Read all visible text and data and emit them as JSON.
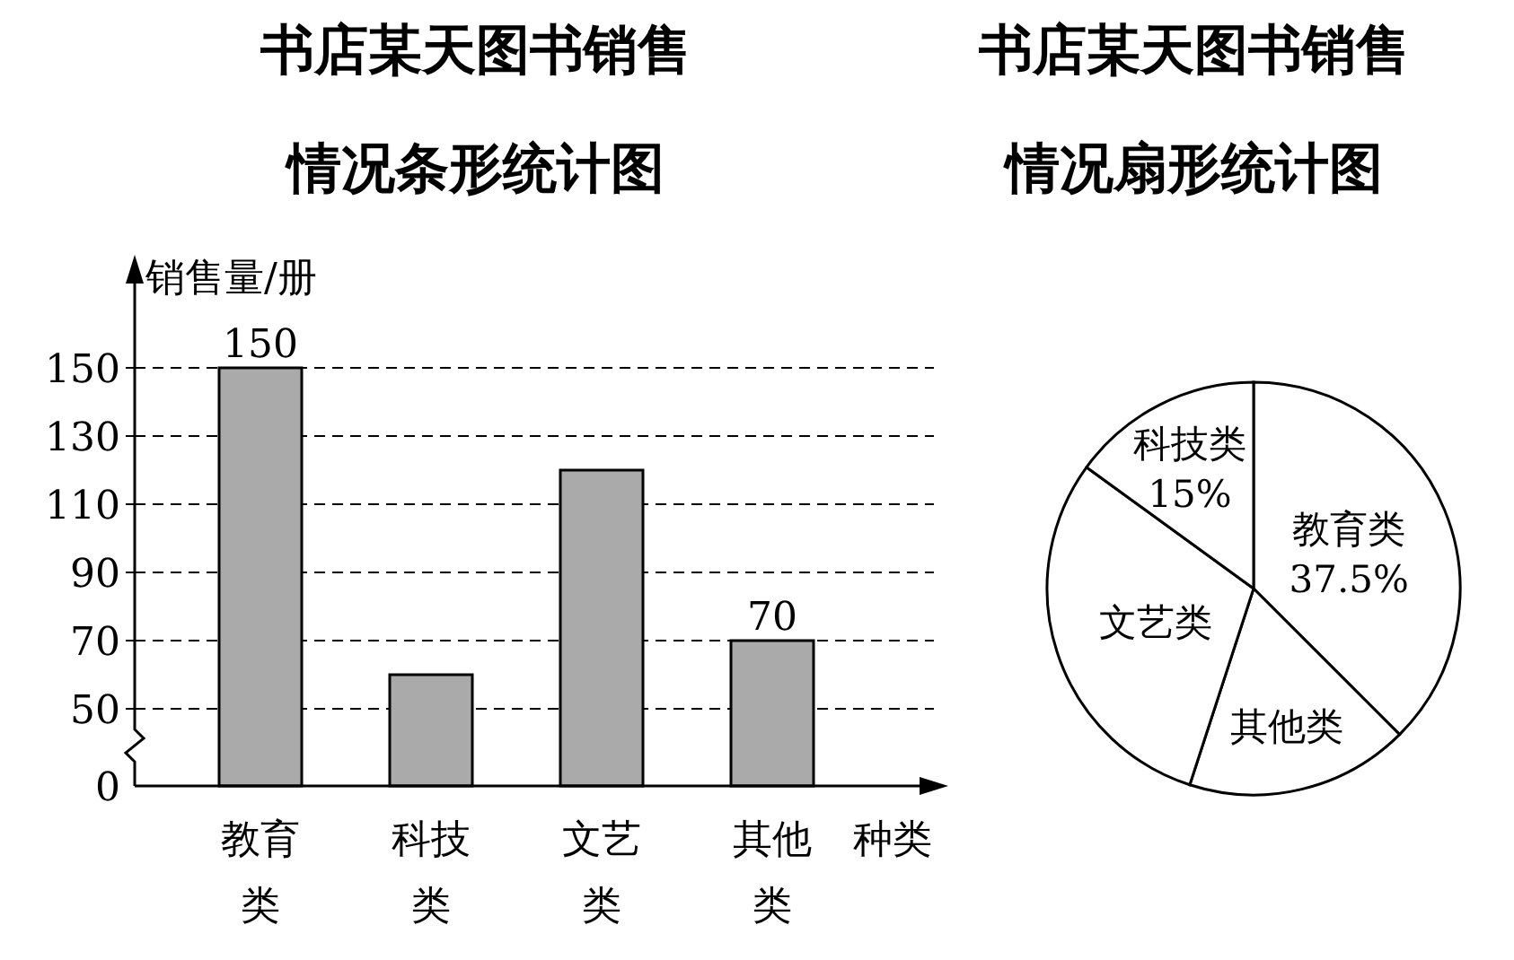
{
  "chart_data": [
    {
      "type": "bar",
      "title": "书店某天图书销售情况条形统计图",
      "xlabel": "种类",
      "ylabel": "销售量/册",
      "categories": [
        "教育类",
        "科技类",
        "文艺类",
        "其他类"
      ],
      "values": [
        150,
        60,
        120,
        70
      ],
      "color": "#aaaaaa",
      "value_labels": [
        "150",
        null,
        null,
        "70"
      ],
      "ylim": [
        50,
        150
      ],
      "yticks": [
        50,
        70,
        90,
        110,
        130,
        150
      ],
      "grid": "y",
      "annotations": [
        "0"
      ]
    },
    {
      "type": "pie",
      "title": "书店某天图书销售情况扇形统计图",
      "categories": [
        "教育类",
        "其他类",
        "文艺类",
        "科技类"
      ],
      "values": [
        37.5,
        17.5,
        30,
        15
      ],
      "colors": [
        "#ffffff",
        "#ffffff",
        "#ffffff",
        "#ffffff"
      ],
      "value_labels": [
        "37.5%",
        null,
        null,
        "15%"
      ]
    }
  ]
}
